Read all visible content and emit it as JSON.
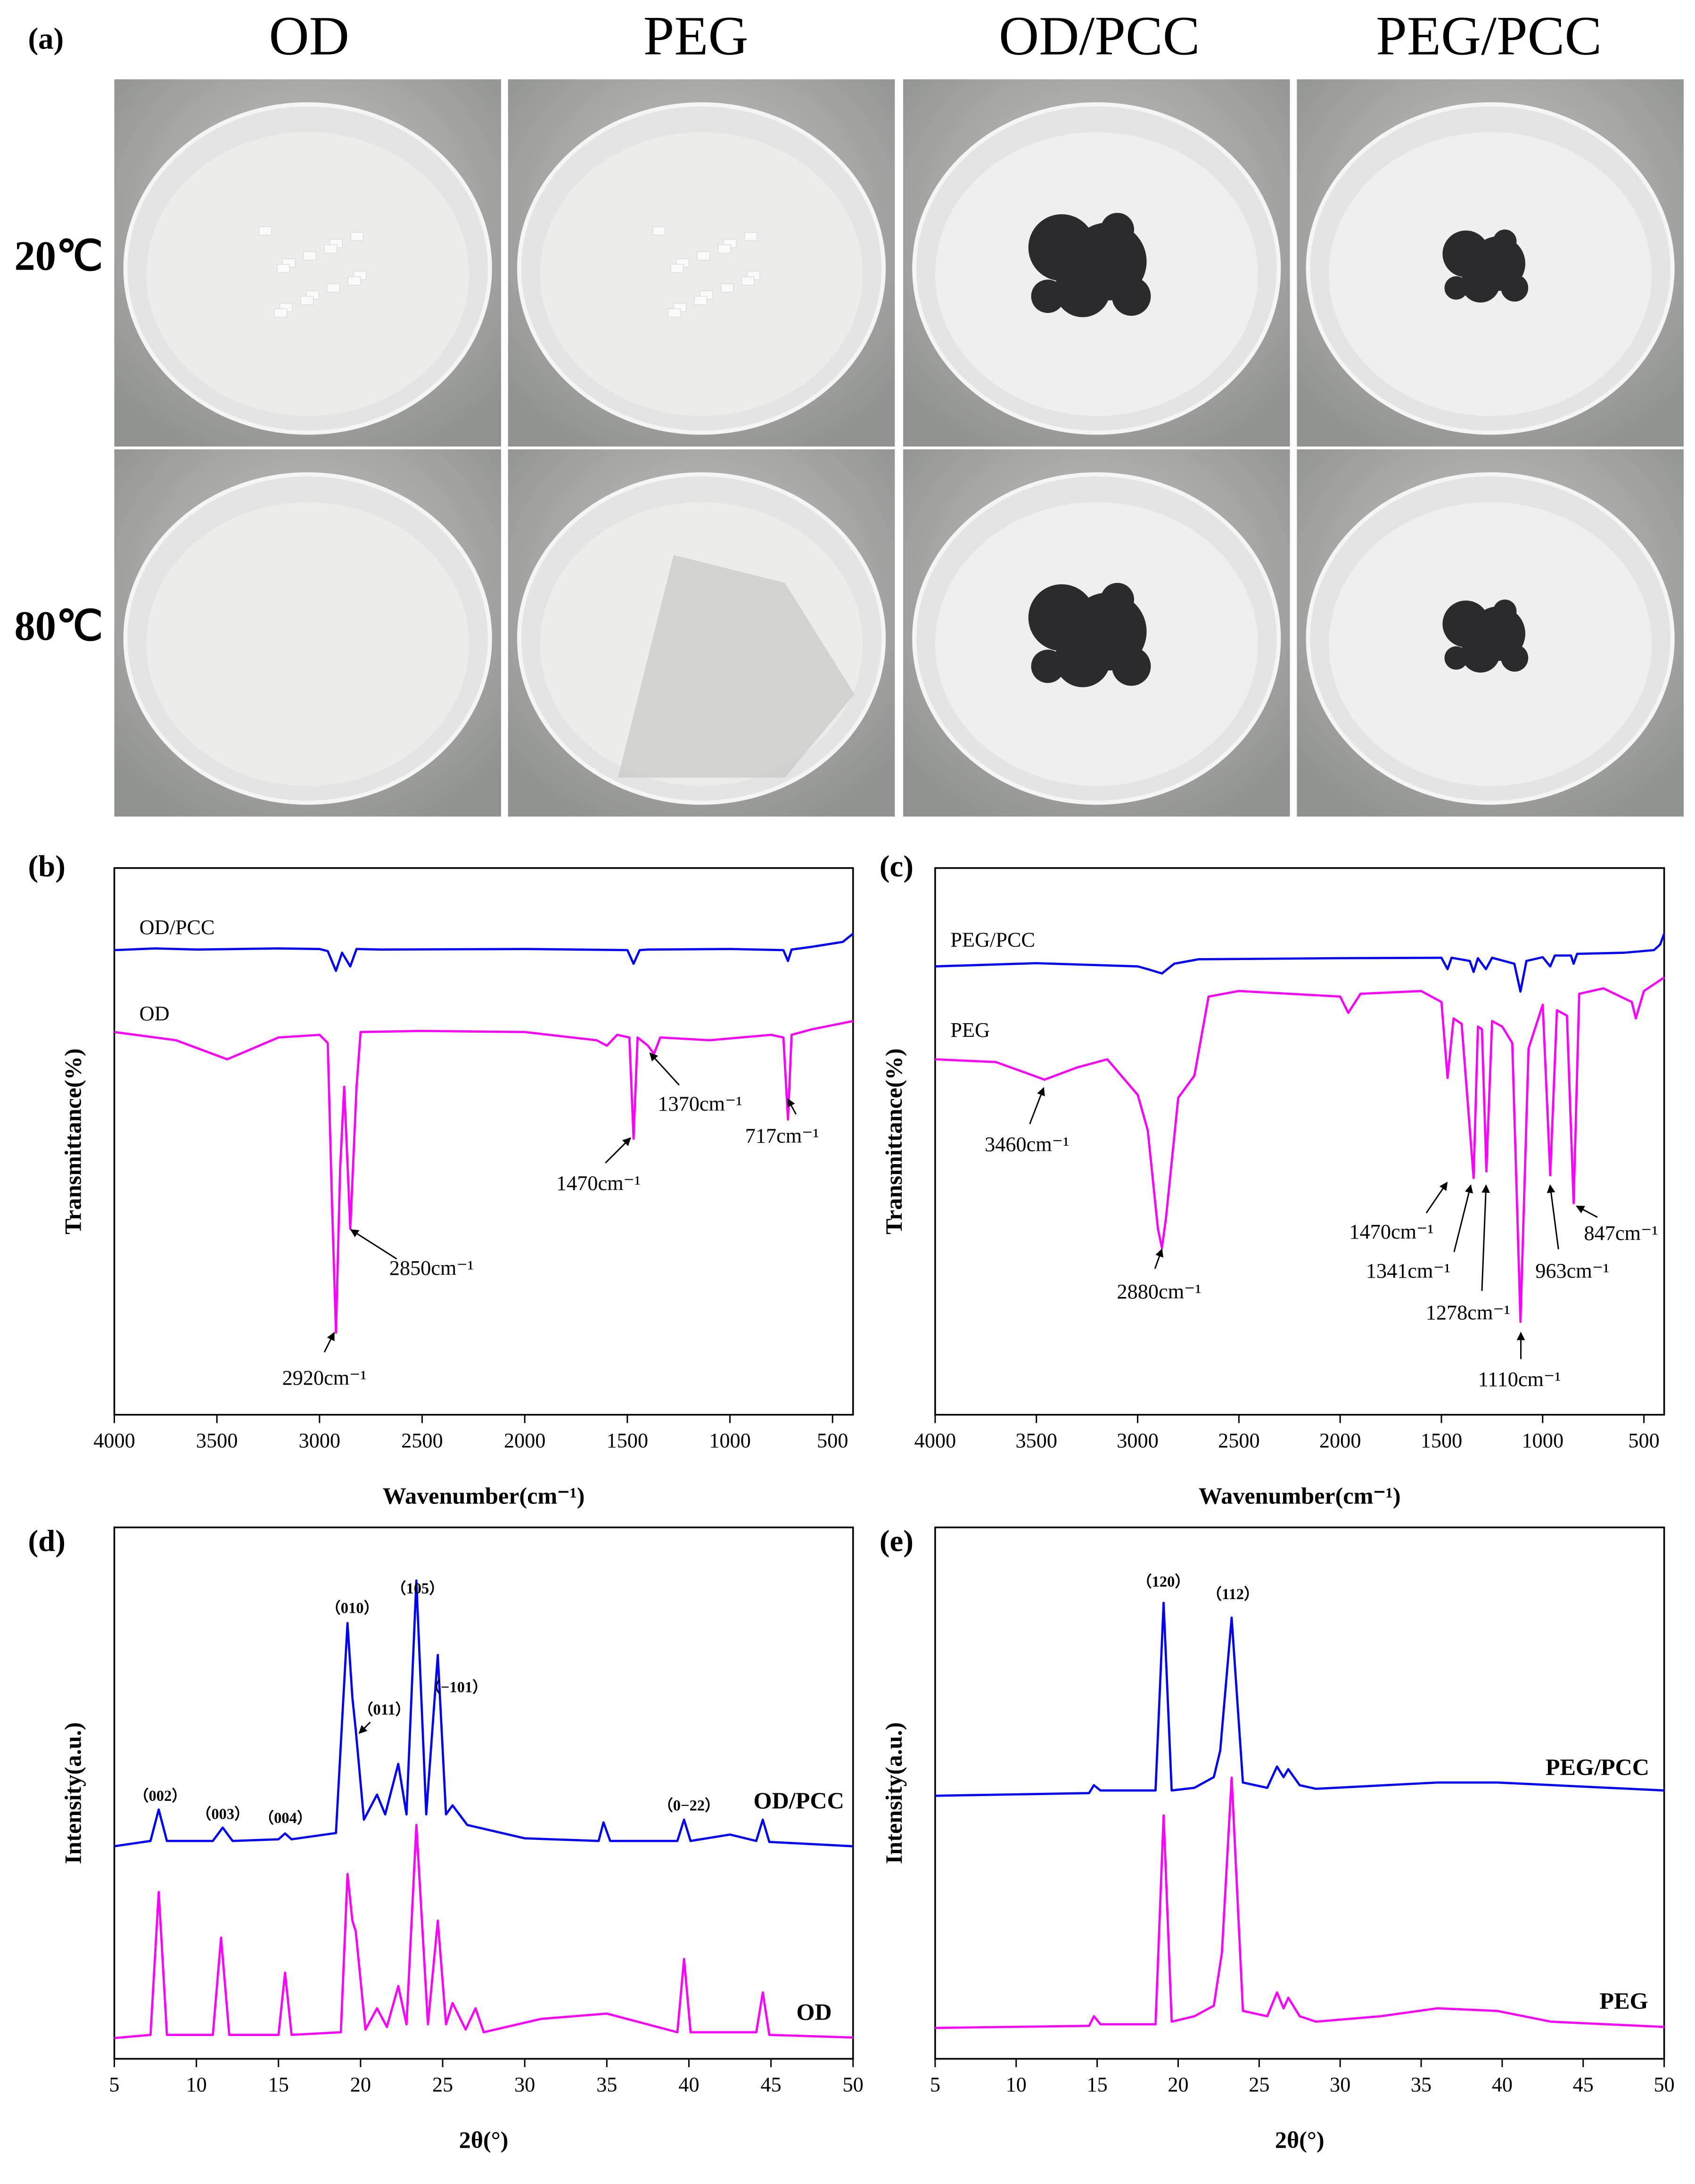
{
  "panel_a": {
    "label": "(a)",
    "columns": [
      "OD",
      "PEG",
      "OD/PCC",
      "PEG/PCC"
    ],
    "rows": [
      "20℃",
      "80℃"
    ]
  },
  "chart_data": [
    {
      "type": "line",
      "panel_label": "(b)",
      "xlabel": "Wavenumber(cm⁻¹)",
      "ylabel": "Transmittance(%)",
      "xlim": [
        4000,
        400
      ],
      "xticks": [
        4000,
        3500,
        3000,
        2500,
        2000,
        1500,
        1000,
        500
      ],
      "ylim": [
        0,
        100
      ],
      "series": [
        {
          "name": "OD/PCC",
          "color": "#0000ff",
          "x": [
            4000,
            3800,
            3600,
            3400,
            3200,
            3000,
            2960,
            2920,
            2890,
            2850,
            2820,
            2700,
            2000,
            1500,
            1470,
            1440,
            1400,
            1000,
            740,
            717,
            700,
            600,
            450,
            400
          ],
          "values": [
            85,
            85.3,
            85.1,
            85.2,
            85.3,
            85.2,
            84.8,
            81.2,
            84.5,
            82,
            85.2,
            85.1,
            85.2,
            85,
            82.5,
            85,
            85.1,
            85.2,
            85,
            83,
            85.1,
            85.6,
            86.5,
            88
          ]
        },
        {
          "name": "OD",
          "color": "#ff00ff",
          "x": [
            4000,
            3700,
            3450,
            3200,
            3000,
            2960,
            2940,
            2920,
            2900,
            2880,
            2850,
            2820,
            2800,
            2500,
            2000,
            1650,
            1600,
            1550,
            1490,
            1470,
            1450,
            1400,
            1370,
            1340,
            1100,
            800,
            740,
            717,
            700,
            600,
            400
          ],
          "values": [
            70,
            68.5,
            65,
            69,
            69.5,
            68,
            40,
            15,
            45,
            60,
            34,
            60,
            70,
            70.2,
            70,
            68.5,
            67.5,
            69.5,
            69,
            50.5,
            69,
            67.5,
            66,
            69,
            68.5,
            69.5,
            69,
            54,
            69.5,
            70.5,
            72
          ]
        }
      ],
      "annotations": [
        "2920cm⁻¹",
        "2850cm⁻¹",
        "1470cm⁻¹",
        "1370cm⁻¹",
        "717cm⁻¹"
      ]
    },
    {
      "type": "line",
      "panel_label": "(c)",
      "xlabel": "Wavenumber(cm⁻¹)",
      "ylabel": "Transmittance(%)",
      "xlim": [
        4000,
        400
      ],
      "xticks": [
        4000,
        3500,
        3000,
        2500,
        2000,
        1500,
        1000,
        500
      ],
      "ylim": [
        0,
        100
      ],
      "series": [
        {
          "name": "PEG/PCC",
          "color": "#0000ff",
          "x": [
            4000,
            3500,
            3000,
            2950,
            2880,
            2820,
            2700,
            2000,
            1500,
            1470,
            1450,
            1360,
            1341,
            1320,
            1280,
            1250,
            1140,
            1110,
            1080,
            1000,
            963,
            940,
            860,
            847,
            830,
            600,
            450,
            420,
            400
          ],
          "values": [
            82,
            82.6,
            82,
            81.5,
            80.7,
            82.5,
            83.3,
            83.5,
            83.6,
            81.5,
            83.6,
            83,
            81,
            83.5,
            81.5,
            83.6,
            82.5,
            77.4,
            83,
            83.7,
            82,
            84,
            84,
            82.5,
            84.3,
            84.5,
            85,
            86,
            88
          ]
        },
        {
          "name": "PEG",
          "color": "#ff00ff",
          "x": [
            4000,
            3700,
            3460,
            3300,
            3150,
            3000,
            2950,
            2900,
            2880,
            2860,
            2800,
            2720,
            2650,
            2500,
            2000,
            1960,
            1900,
            1600,
            1500,
            1470,
            1440,
            1400,
            1341,
            1320,
            1300,
            1278,
            1250,
            1200,
            1150,
            1110,
            1070,
            1000,
            963,
            930,
            880,
            847,
            820,
            700,
            560,
            540,
            500,
            420,
            400
          ],
          "values": [
            65,
            64.5,
            61.3,
            63.5,
            65,
            58.5,
            52,
            34,
            30.5,
            36,
            58,
            62,
            76.5,
            77.5,
            76.5,
            73.5,
            77,
            77.5,
            75.5,
            61.6,
            72.5,
            71.5,
            43.3,
            71,
            70.5,
            44.5,
            72,
            71,
            68,
            17,
            67,
            75,
            43.8,
            74,
            73,
            38.7,
            77,
            78,
            75.5,
            72.5,
            77.5,
            79.5,
            80
          ]
        }
      ],
      "annotations": [
        "3460cm⁻¹",
        "2880cm⁻¹",
        "1470cm⁻¹",
        "1341cm⁻¹",
        "1278cm⁻¹",
        "1110cm⁻¹",
        "963cm⁻¹",
        "847cm⁻¹"
      ]
    },
    {
      "type": "line",
      "panel_label": "(d)",
      "xlabel": "2θ(°)",
      "ylabel": "Intensity(a.u.)",
      "xlim": [
        5,
        50
      ],
      "xticks": [
        5,
        10,
        15,
        20,
        25,
        30,
        35,
        40,
        45,
        50
      ],
      "ylim": [
        0,
        100
      ],
      "series": [
        {
          "name": "OD/PCC",
          "color": "#0000ff",
          "x": [
            5,
            7.2,
            7.7,
            8.2,
            11,
            11.6,
            12.2,
            15,
            15.4,
            15.8,
            18.5,
            19.2,
            19.5,
            19.7,
            20.2,
            21,
            21.5,
            22.3,
            22.8,
            23.4,
            24,
            24.7,
            25.2,
            25.6,
            26.5,
            30,
            34.5,
            34.8,
            35.2,
            39.3,
            39.7,
            40.1,
            42.5,
            44.1,
            44.5,
            44.9,
            50
          ],
          "values": [
            40,
            41,
            46.9,
            41,
            41,
            43.5,
            41,
            41.3,
            42.4,
            41.3,
            42.5,
            82,
            68,
            62,
            45,
            49.7,
            46,
            55.5,
            46,
            90,
            46,
            76,
            46,
            47.7,
            44,
            41.5,
            41,
            44.5,
            41,
            41,
            45,
            41,
            42.2,
            41,
            45,
            40.8,
            40
          ]
        },
        {
          "name": "OD",
          "color": "#ff00ff",
          "x": [
            5,
            7.2,
            7.7,
            8.2,
            11,
            11.5,
            12,
            15,
            15.4,
            15.8,
            18.8,
            19.2,
            19.5,
            19.7,
            20.3,
            21,
            21.6,
            22.3,
            22.8,
            23.4,
            24.1,
            24.7,
            25.2,
            25.6,
            26.4,
            27,
            27.5,
            31,
            35,
            39.3,
            39.7,
            40.1,
            44.1,
            44.5,
            44.9,
            50
          ],
          "values": [
            3.9,
            4.5,
            31.4,
            4.5,
            4.5,
            22.8,
            4.5,
            4.5,
            16.2,
            4.5,
            5,
            34.8,
            26,
            24,
            5.5,
            9.5,
            6,
            13.7,
            6.5,
            44,
            6.5,
            26,
            6.5,
            10.5,
            5.5,
            9.5,
            5,
            7.5,
            8.5,
            5,
            18.8,
            5,
            5,
            12.5,
            4.5,
            4
          ]
        }
      ],
      "annotations": [
        "（002）",
        "（003）",
        "（004）",
        "（010）",
        "（011）",
        "（105）",
        "（−101）",
        "（0−22）"
      ]
    },
    {
      "type": "line",
      "panel_label": "(e)",
      "xlabel": "2θ(°)",
      "ylabel": "Intensity(a.u.)",
      "xlim": [
        5,
        50
      ],
      "xticks": [
        5,
        10,
        15,
        20,
        25,
        30,
        35,
        40,
        45,
        50
      ],
      "ylim": [
        0,
        100
      ],
      "series": [
        {
          "name": "PEG/PCC",
          "color": "#0000ff",
          "x": [
            5,
            14.5,
            14.8,
            15.2,
            18.6,
            19.1,
            19.6,
            21,
            22.2,
            22.6,
            23.3,
            24,
            25.5,
            26.1,
            26.5,
            26.8,
            27.5,
            28.5,
            36,
            39.7,
            50
          ],
          "values": [
            49.5,
            50,
            51.5,
            50.5,
            50.5,
            85.8,
            50.5,
            51,
            53,
            58,
            83,
            52,
            51,
            55,
            53,
            54.5,
            51.5,
            50.8,
            52,
            52,
            50.5
          ]
        },
        {
          "name": "PEG",
          "color": "#ff00ff",
          "x": [
            5,
            14.5,
            14.8,
            15.2,
            18.6,
            19.1,
            19.6,
            21,
            22.2,
            22.7,
            23.3,
            24,
            25.5,
            26.1,
            26.5,
            26.8,
            27.5,
            28.5,
            32.5,
            36,
            39.7,
            43,
            50
          ],
          "values": [
            5.8,
            6.2,
            8,
            6.5,
            6.5,
            45.8,
            7,
            8,
            10,
            20,
            52.9,
            9,
            8,
            12.5,
            9.5,
            11.5,
            8,
            7,
            8,
            9.5,
            9,
            7,
            6
          ]
        }
      ],
      "annotations": [
        "（120）",
        "（112）"
      ]
    }
  ]
}
